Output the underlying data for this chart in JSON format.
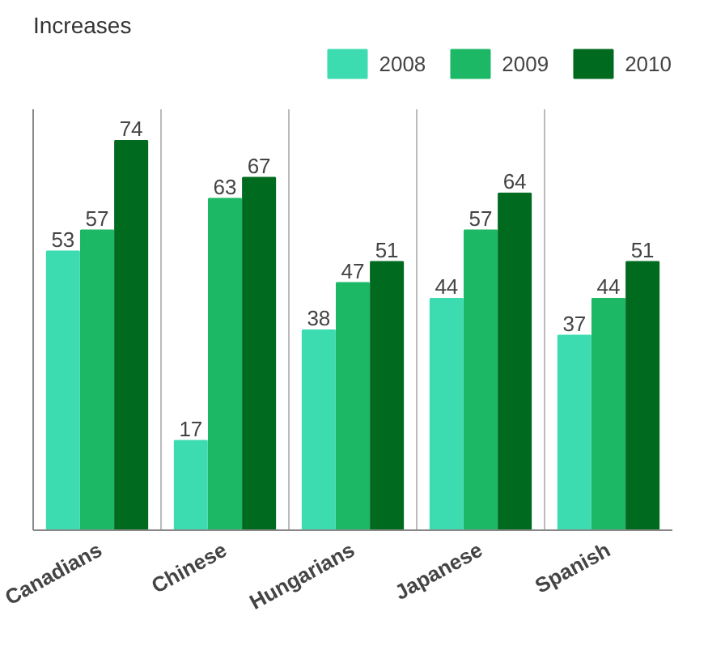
{
  "chart_data": {
    "type": "bar",
    "title": "Increases",
    "categories": [
      "Canadians",
      "Chinese",
      "Hungarians",
      "Japanese",
      "Spanish"
    ],
    "series": [
      {
        "name": "2008",
        "color": "#3ddcb0",
        "values": [
          53,
          17,
          38,
          44,
          37
        ]
      },
      {
        "name": "2009",
        "color": "#1db866",
        "values": [
          57,
          63,
          47,
          57,
          44
        ]
      },
      {
        "name": "2010",
        "color": "#006a1e",
        "values": [
          74,
          67,
          51,
          64,
          51
        ]
      }
    ],
    "ylim": [
      0,
      80
    ],
    "tick_labels": "x",
    "data_labels": true,
    "grid": "x",
    "legend": "top right"
  }
}
